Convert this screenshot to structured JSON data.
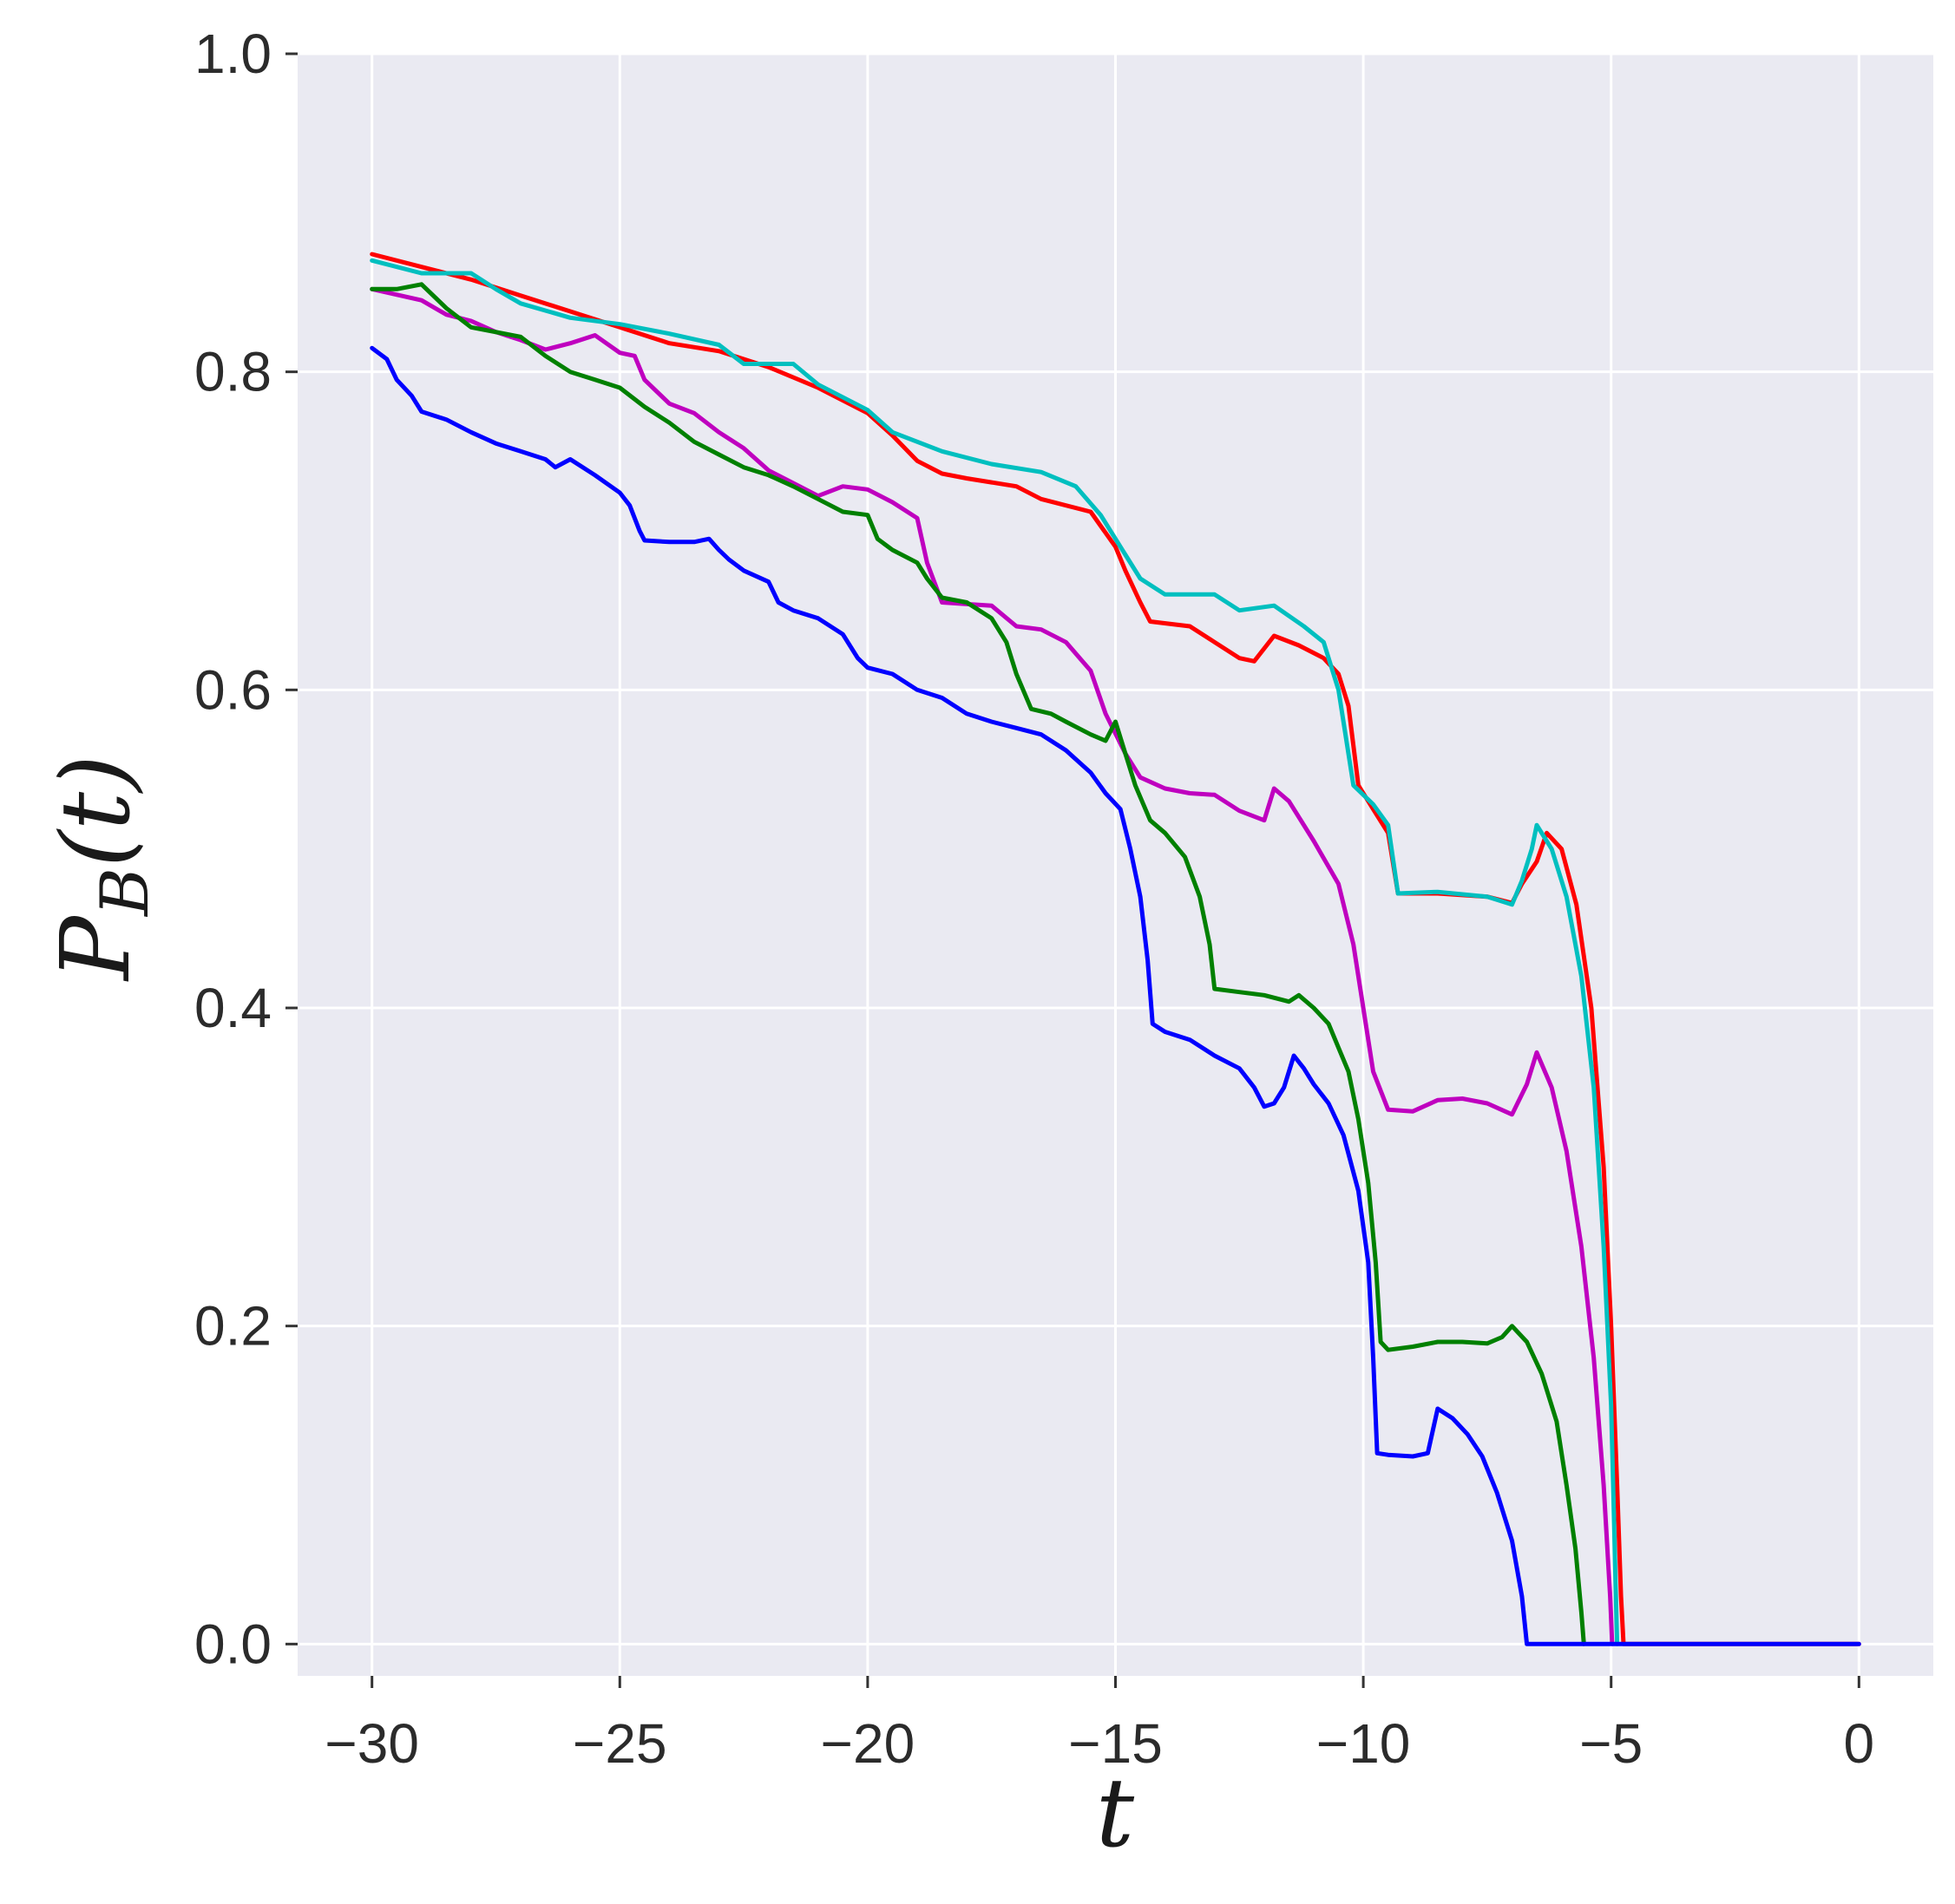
{
  "chart_data": {
    "type": "line",
    "xlabel": "t",
    "ylabel": {
      "main": "P",
      "sub": "B",
      "suffix": "(t)"
    },
    "xlim": [
      -31.5,
      1.5
    ],
    "ylim": [
      -0.02,
      1.0
    ],
    "xticks": [
      -30,
      -25,
      -20,
      -15,
      -10,
      -5,
      0
    ],
    "xtick_labels": [
      "−30",
      "−25",
      "−20",
      "−15",
      "−10",
      "−5",
      "0"
    ],
    "yticks": [
      0.0,
      0.2,
      0.4,
      0.6,
      0.8,
      1.0
    ],
    "ytick_labels": [
      "0.0",
      "0.2",
      "0.4",
      "0.6",
      "0.8",
      "1.0"
    ],
    "grid": true,
    "colors": {
      "background": "#eaeaf2",
      "grid": "#ffffff"
    },
    "series": [
      {
        "color": "#ff0000",
        "points": [
          [
            -30,
            0.874
          ],
          [
            -29,
            0.866
          ],
          [
            -28,
            0.858
          ],
          [
            -27,
            0.848
          ],
          [
            -26,
            0.838
          ],
          [
            -25,
            0.828
          ],
          [
            -24,
            0.818
          ],
          [
            -23,
            0.813
          ],
          [
            -22,
            0.803
          ],
          [
            -21,
            0.79
          ],
          [
            -20,
            0.774
          ],
          [
            -19.5,
            0.76
          ],
          [
            -19,
            0.744
          ],
          [
            -18.5,
            0.736
          ],
          [
            -18,
            0.733
          ],
          [
            -17,
            0.728
          ],
          [
            -16.5,
            0.72
          ],
          [
            -15.5,
            0.712
          ],
          [
            -15,
            0.69
          ],
          [
            -14.8,
            0.675
          ],
          [
            -14.5,
            0.655
          ],
          [
            -14.3,
            0.643
          ],
          [
            -13.5,
            0.64
          ],
          [
            -13,
            0.63
          ],
          [
            -12.5,
            0.62
          ],
          [
            -12.2,
            0.618
          ],
          [
            -11.8,
            0.634
          ],
          [
            -11.3,
            0.628
          ],
          [
            -10.8,
            0.62
          ],
          [
            -10.5,
            0.61
          ],
          [
            -10.3,
            0.59
          ],
          [
            -10.1,
            0.54
          ],
          [
            -9.8,
            0.525
          ],
          [
            -9.5,
            0.51
          ],
          [
            -9.3,
            0.472
          ],
          [
            -8.5,
            0.472
          ],
          [
            -7.5,
            0.47
          ],
          [
            -7,
            0.466
          ],
          [
            -6.8,
            0.478
          ],
          [
            -6.5,
            0.492
          ],
          [
            -6.3,
            0.51
          ],
          [
            -6.0,
            0.5
          ],
          [
            -5.7,
            0.465
          ],
          [
            -5.4,
            0.4
          ],
          [
            -5.15,
            0.3
          ],
          [
            -5.0,
            0.2
          ],
          [
            -4.88,
            0.1
          ],
          [
            -4.8,
            0.03
          ],
          [
            -4.75,
            0.0
          ],
          [
            0,
            0.0
          ]
        ]
      },
      {
        "color": "#00bfbf",
        "points": [
          [
            -30,
            0.87
          ],
          [
            -29,
            0.862
          ],
          [
            -28,
            0.862
          ],
          [
            -27.5,
            0.852
          ],
          [
            -27,
            0.843
          ],
          [
            -26,
            0.834
          ],
          [
            -25,
            0.83
          ],
          [
            -24,
            0.824
          ],
          [
            -23,
            0.817
          ],
          [
            -22.5,
            0.805
          ],
          [
            -21.5,
            0.805
          ],
          [
            -21,
            0.792
          ],
          [
            -20,
            0.776
          ],
          [
            -19.5,
            0.762
          ],
          [
            -18.5,
            0.75
          ],
          [
            -17.5,
            0.742
          ],
          [
            -16.5,
            0.737
          ],
          [
            -15.8,
            0.728
          ],
          [
            -15.3,
            0.71
          ],
          [
            -14.8,
            0.685
          ],
          [
            -14.5,
            0.67
          ],
          [
            -14,
            0.66
          ],
          [
            -13,
            0.66
          ],
          [
            -12.5,
            0.65
          ],
          [
            -11.8,
            0.653
          ],
          [
            -11.2,
            0.64
          ],
          [
            -10.8,
            0.63
          ],
          [
            -10.5,
            0.6
          ],
          [
            -10.2,
            0.54
          ],
          [
            -9.8,
            0.528
          ],
          [
            -9.5,
            0.515
          ],
          [
            -9.3,
            0.472
          ],
          [
            -8.5,
            0.473
          ],
          [
            -7.5,
            0.47
          ],
          [
            -7,
            0.465
          ],
          [
            -6.8,
            0.48
          ],
          [
            -6.6,
            0.5
          ],
          [
            -6.5,
            0.515
          ],
          [
            -6.2,
            0.5
          ],
          [
            -5.9,
            0.47
          ],
          [
            -5.6,
            0.42
          ],
          [
            -5.35,
            0.35
          ],
          [
            -5.15,
            0.25
          ],
          [
            -5.0,
            0.15
          ],
          [
            -4.92,
            0.05
          ],
          [
            -4.88,
            0.0
          ]
        ]
      },
      {
        "color": "#bf00bf",
        "points": [
          [
            -30,
            0.852
          ],
          [
            -29,
            0.845
          ],
          [
            -28.5,
            0.836
          ],
          [
            -28,
            0.832
          ],
          [
            -27.5,
            0.825
          ],
          [
            -27,
            0.82
          ],
          [
            -26.5,
            0.814
          ],
          [
            -26,
            0.818
          ],
          [
            -25.5,
            0.823
          ],
          [
            -25,
            0.812
          ],
          [
            -24.7,
            0.81
          ],
          [
            -24.5,
            0.795
          ],
          [
            -24,
            0.78
          ],
          [
            -23.5,
            0.774
          ],
          [
            -23,
            0.762
          ],
          [
            -22.5,
            0.752
          ],
          [
            -22,
            0.738
          ],
          [
            -21.5,
            0.73
          ],
          [
            -21,
            0.722
          ],
          [
            -20.5,
            0.728
          ],
          [
            -20,
            0.726
          ],
          [
            -19.5,
            0.718
          ],
          [
            -19,
            0.708
          ],
          [
            -18.8,
            0.68
          ],
          [
            -18.5,
            0.655
          ],
          [
            -17.5,
            0.653
          ],
          [
            -17,
            0.64
          ],
          [
            -16.5,
            0.638
          ],
          [
            -16,
            0.63
          ],
          [
            -15.5,
            0.612
          ],
          [
            -15.2,
            0.585
          ],
          [
            -14.8,
            0.56
          ],
          [
            -14.5,
            0.545
          ],
          [
            -14,
            0.538
          ],
          [
            -13.5,
            0.535
          ],
          [
            -13,
            0.534
          ],
          [
            -12.5,
            0.524
          ],
          [
            -12,
            0.518
          ],
          [
            -11.8,
            0.538
          ],
          [
            -11.5,
            0.53
          ],
          [
            -11,
            0.505
          ],
          [
            -10.5,
            0.478
          ],
          [
            -10.2,
            0.44
          ],
          [
            -10,
            0.4
          ],
          [
            -9.8,
            0.36
          ],
          [
            -9.5,
            0.336
          ],
          [
            -9,
            0.335
          ],
          [
            -8.5,
            0.342
          ],
          [
            -8,
            0.343
          ],
          [
            -7.5,
            0.34
          ],
          [
            -7,
            0.333
          ],
          [
            -6.7,
            0.352
          ],
          [
            -6.5,
            0.372
          ],
          [
            -6.2,
            0.35
          ],
          [
            -5.9,
            0.31
          ],
          [
            -5.6,
            0.25
          ],
          [
            -5.35,
            0.18
          ],
          [
            -5.15,
            0.1
          ],
          [
            -5.02,
            0.03
          ],
          [
            -4.98,
            0.0
          ]
        ]
      },
      {
        "color": "#008000",
        "points": [
          [
            -30,
            0.852
          ],
          [
            -29.5,
            0.852
          ],
          [
            -29,
            0.855
          ],
          [
            -28.5,
            0.84
          ],
          [
            -28,
            0.828
          ],
          [
            -27,
            0.822
          ],
          [
            -26.5,
            0.81
          ],
          [
            -26,
            0.8
          ],
          [
            -25.5,
            0.795
          ],
          [
            -25,
            0.79
          ],
          [
            -24.5,
            0.778
          ],
          [
            -24,
            0.768
          ],
          [
            -23.5,
            0.756
          ],
          [
            -23,
            0.748
          ],
          [
            -22.5,
            0.74
          ],
          [
            -22,
            0.735
          ],
          [
            -21.5,
            0.728
          ],
          [
            -21,
            0.72
          ],
          [
            -20.5,
            0.712
          ],
          [
            -20,
            0.71
          ],
          [
            -19.8,
            0.695
          ],
          [
            -19.5,
            0.688
          ],
          [
            -19,
            0.68
          ],
          [
            -18.8,
            0.67
          ],
          [
            -18.5,
            0.658
          ],
          [
            -18,
            0.655
          ],
          [
            -17.5,
            0.645
          ],
          [
            -17.2,
            0.63
          ],
          [
            -17,
            0.61
          ],
          [
            -16.7,
            0.588
          ],
          [
            -16.3,
            0.585
          ],
          [
            -16,
            0.58
          ],
          [
            -15.5,
            0.572
          ],
          [
            -15.2,
            0.568
          ],
          [
            -15,
            0.58
          ],
          [
            -14.8,
            0.56
          ],
          [
            -14.6,
            0.54
          ],
          [
            -14.3,
            0.518
          ],
          [
            -14,
            0.51
          ],
          [
            -13.6,
            0.495
          ],
          [
            -13.3,
            0.47
          ],
          [
            -13.1,
            0.44
          ],
          [
            -13.0,
            0.412
          ],
          [
            -12.5,
            0.41
          ],
          [
            -12,
            0.408
          ],
          [
            -11.5,
            0.404
          ],
          [
            -11.3,
            0.408
          ],
          [
            -11,
            0.4
          ],
          [
            -10.7,
            0.39
          ],
          [
            -10.5,
            0.375
          ],
          [
            -10.3,
            0.36
          ],
          [
            -10.1,
            0.33
          ],
          [
            -9.9,
            0.29
          ],
          [
            -9.75,
            0.24
          ],
          [
            -9.65,
            0.19
          ],
          [
            -9.5,
            0.185
          ],
          [
            -9,
            0.187
          ],
          [
            -8.5,
            0.19
          ],
          [
            -8,
            0.19
          ],
          [
            -7.5,
            0.189
          ],
          [
            -7.2,
            0.193
          ],
          [
            -7.0,
            0.2
          ],
          [
            -6.7,
            0.19
          ],
          [
            -6.4,
            0.17
          ],
          [
            -6.1,
            0.14
          ],
          [
            -5.9,
            0.1
          ],
          [
            -5.72,
            0.06
          ],
          [
            -5.6,
            0.02
          ],
          [
            -5.55,
            0.0
          ]
        ]
      },
      {
        "color": "#0000ff",
        "points": [
          [
            -30,
            0.815
          ],
          [
            -29.7,
            0.808
          ],
          [
            -29.5,
            0.795
          ],
          [
            -29.2,
            0.785
          ],
          [
            -29,
            0.775
          ],
          [
            -28.5,
            0.77
          ],
          [
            -28,
            0.762
          ],
          [
            -27.5,
            0.755
          ],
          [
            -27,
            0.75
          ],
          [
            -26.5,
            0.745
          ],
          [
            -26.3,
            0.74
          ],
          [
            -26,
            0.745
          ],
          [
            -25.5,
            0.735
          ],
          [
            -25,
            0.724
          ],
          [
            -24.8,
            0.716
          ],
          [
            -24.6,
            0.7
          ],
          [
            -24.5,
            0.694
          ],
          [
            -24,
            0.693
          ],
          [
            -23.5,
            0.693
          ],
          [
            -23.2,
            0.695
          ],
          [
            -23,
            0.688
          ],
          [
            -22.8,
            0.682
          ],
          [
            -22.5,
            0.675
          ],
          [
            -22,
            0.668
          ],
          [
            -21.8,
            0.655
          ],
          [
            -21.5,
            0.65
          ],
          [
            -21,
            0.645
          ],
          [
            -20.5,
            0.635
          ],
          [
            -20.2,
            0.62
          ],
          [
            -20,
            0.614
          ],
          [
            -19.5,
            0.61
          ],
          [
            -19,
            0.6
          ],
          [
            -18.5,
            0.595
          ],
          [
            -18,
            0.585
          ],
          [
            -17.5,
            0.58
          ],
          [
            -17,
            0.576
          ],
          [
            -16.5,
            0.572
          ],
          [
            -16,
            0.562
          ],
          [
            -15.5,
            0.548
          ],
          [
            -15.2,
            0.535
          ],
          [
            -14.9,
            0.525
          ],
          [
            -14.7,
            0.5
          ],
          [
            -14.5,
            0.47
          ],
          [
            -14.35,
            0.43
          ],
          [
            -14.25,
            0.39
          ],
          [
            -14,
            0.385
          ],
          [
            -13.5,
            0.38
          ],
          [
            -13,
            0.37
          ],
          [
            -12.5,
            0.362
          ],
          [
            -12.2,
            0.35
          ],
          [
            -12,
            0.338
          ],
          [
            -11.8,
            0.34
          ],
          [
            -11.6,
            0.35
          ],
          [
            -11.4,
            0.37
          ],
          [
            -11.2,
            0.362
          ],
          [
            -11,
            0.352
          ],
          [
            -10.7,
            0.34
          ],
          [
            -10.4,
            0.32
          ],
          [
            -10.1,
            0.285
          ],
          [
            -9.9,
            0.24
          ],
          [
            -9.8,
            0.18
          ],
          [
            -9.72,
            0.12
          ],
          [
            -9.5,
            0.119
          ],
          [
            -9.0,
            0.118
          ],
          [
            -8.7,
            0.12
          ],
          [
            -8.5,
            0.148
          ],
          [
            -8.2,
            0.142
          ],
          [
            -7.9,
            0.132
          ],
          [
            -7.6,
            0.118
          ],
          [
            -7.3,
            0.095
          ],
          [
            -7.0,
            0.065
          ],
          [
            -6.8,
            0.03
          ],
          [
            -6.7,
            0.0
          ],
          [
            0,
            0.0
          ]
        ]
      }
    ]
  }
}
